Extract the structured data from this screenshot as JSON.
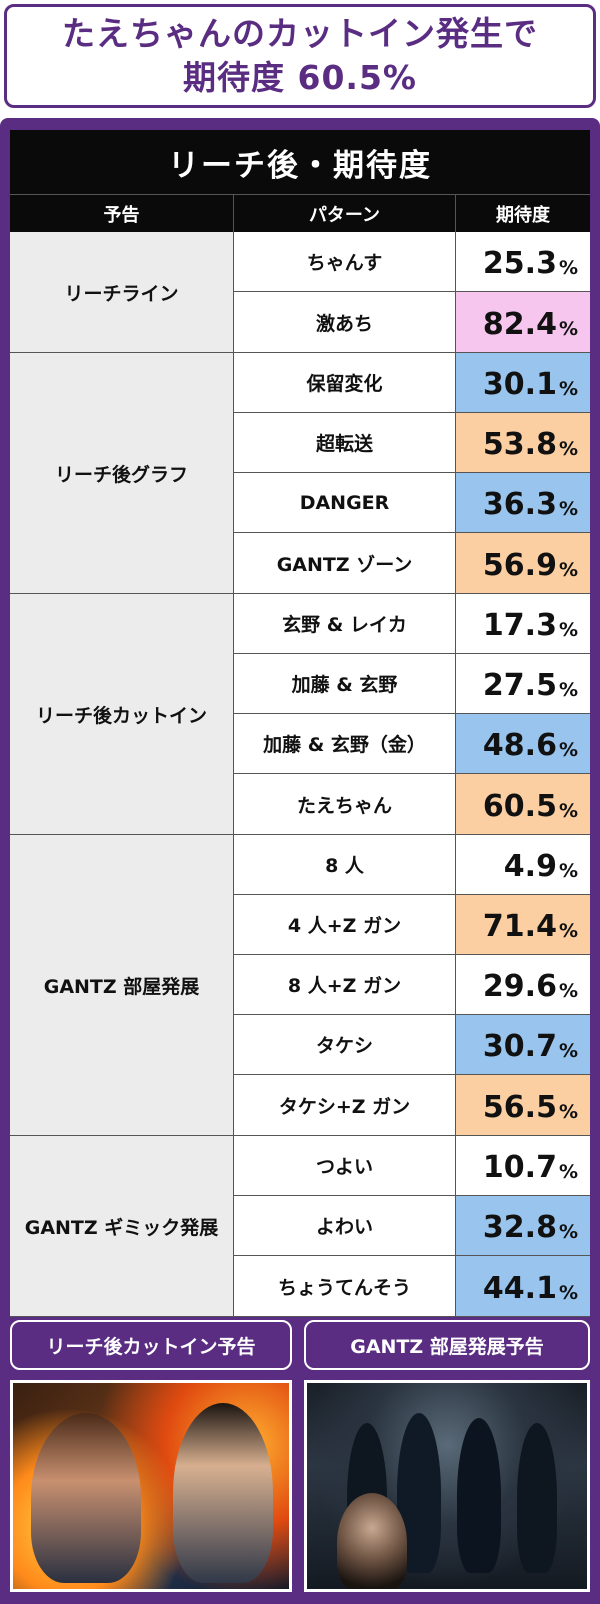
{
  "headline": {
    "line1": "たえちゃんのカットイン発生で",
    "line2": "期待度 60.5%"
  },
  "table": {
    "title": "リーチ後・期待度",
    "headers": [
      "予告",
      "パターン",
      "期待度"
    ],
    "percent_sign": "%",
    "groups": [
      {
        "category": "リーチライン",
        "rows": [
          {
            "pattern": "ちゃんす",
            "value": "25.3",
            "highlight": "none"
          },
          {
            "pattern": "激あち",
            "value": "82.4",
            "highlight": "pink"
          }
        ]
      },
      {
        "category": "リーチ後グラフ",
        "rows": [
          {
            "pattern": "保留変化",
            "value": "30.1",
            "highlight": "blue"
          },
          {
            "pattern": "超転送",
            "value": "53.8",
            "highlight": "orange"
          },
          {
            "pattern": "DANGER",
            "value": "36.3",
            "highlight": "blue"
          },
          {
            "pattern": "GANTZ ゾーン",
            "value": "56.9",
            "highlight": "orange"
          }
        ]
      },
      {
        "category": "リーチ後カットイン",
        "rows": [
          {
            "pattern": "玄野 & レイカ",
            "value": "17.3",
            "highlight": "none"
          },
          {
            "pattern": "加藤 & 玄野",
            "value": "27.5",
            "highlight": "none"
          },
          {
            "pattern": "加藤 & 玄野（金）",
            "value": "48.6",
            "highlight": "blue"
          },
          {
            "pattern": "たえちゃん",
            "value": "60.5",
            "highlight": "orange"
          }
        ]
      },
      {
        "category": "GANTZ 部屋発展",
        "rows": [
          {
            "pattern": "8 人",
            "value": "4.9",
            "highlight": "none"
          },
          {
            "pattern": "4 人+Z ガン",
            "value": "71.4",
            "highlight": "orange"
          },
          {
            "pattern": "8 人+Z ガン",
            "value": "29.6",
            "highlight": "none"
          },
          {
            "pattern": "タケシ",
            "value": "30.7",
            "highlight": "blue"
          },
          {
            "pattern": "タケシ+Z ガン",
            "value": "56.5",
            "highlight": "orange"
          }
        ]
      },
      {
        "category": "GANTZ ギミック発展",
        "rows": [
          {
            "pattern": "つよい",
            "value": "10.7",
            "highlight": "none"
          },
          {
            "pattern": "よわい",
            "value": "32.8",
            "highlight": "blue"
          },
          {
            "pattern": "ちょうてんそう",
            "value": "44.1",
            "highlight": "blue"
          }
        ]
      }
    ]
  },
  "captions": {
    "left": "リーチ後カットイン予告",
    "right": "GANTZ 部屋発展予告"
  },
  "colors": {
    "accent": "#5a2d82",
    "pink": "#f7c6ef",
    "blue": "#98c4ee",
    "orange": "#fbcfa2"
  }
}
